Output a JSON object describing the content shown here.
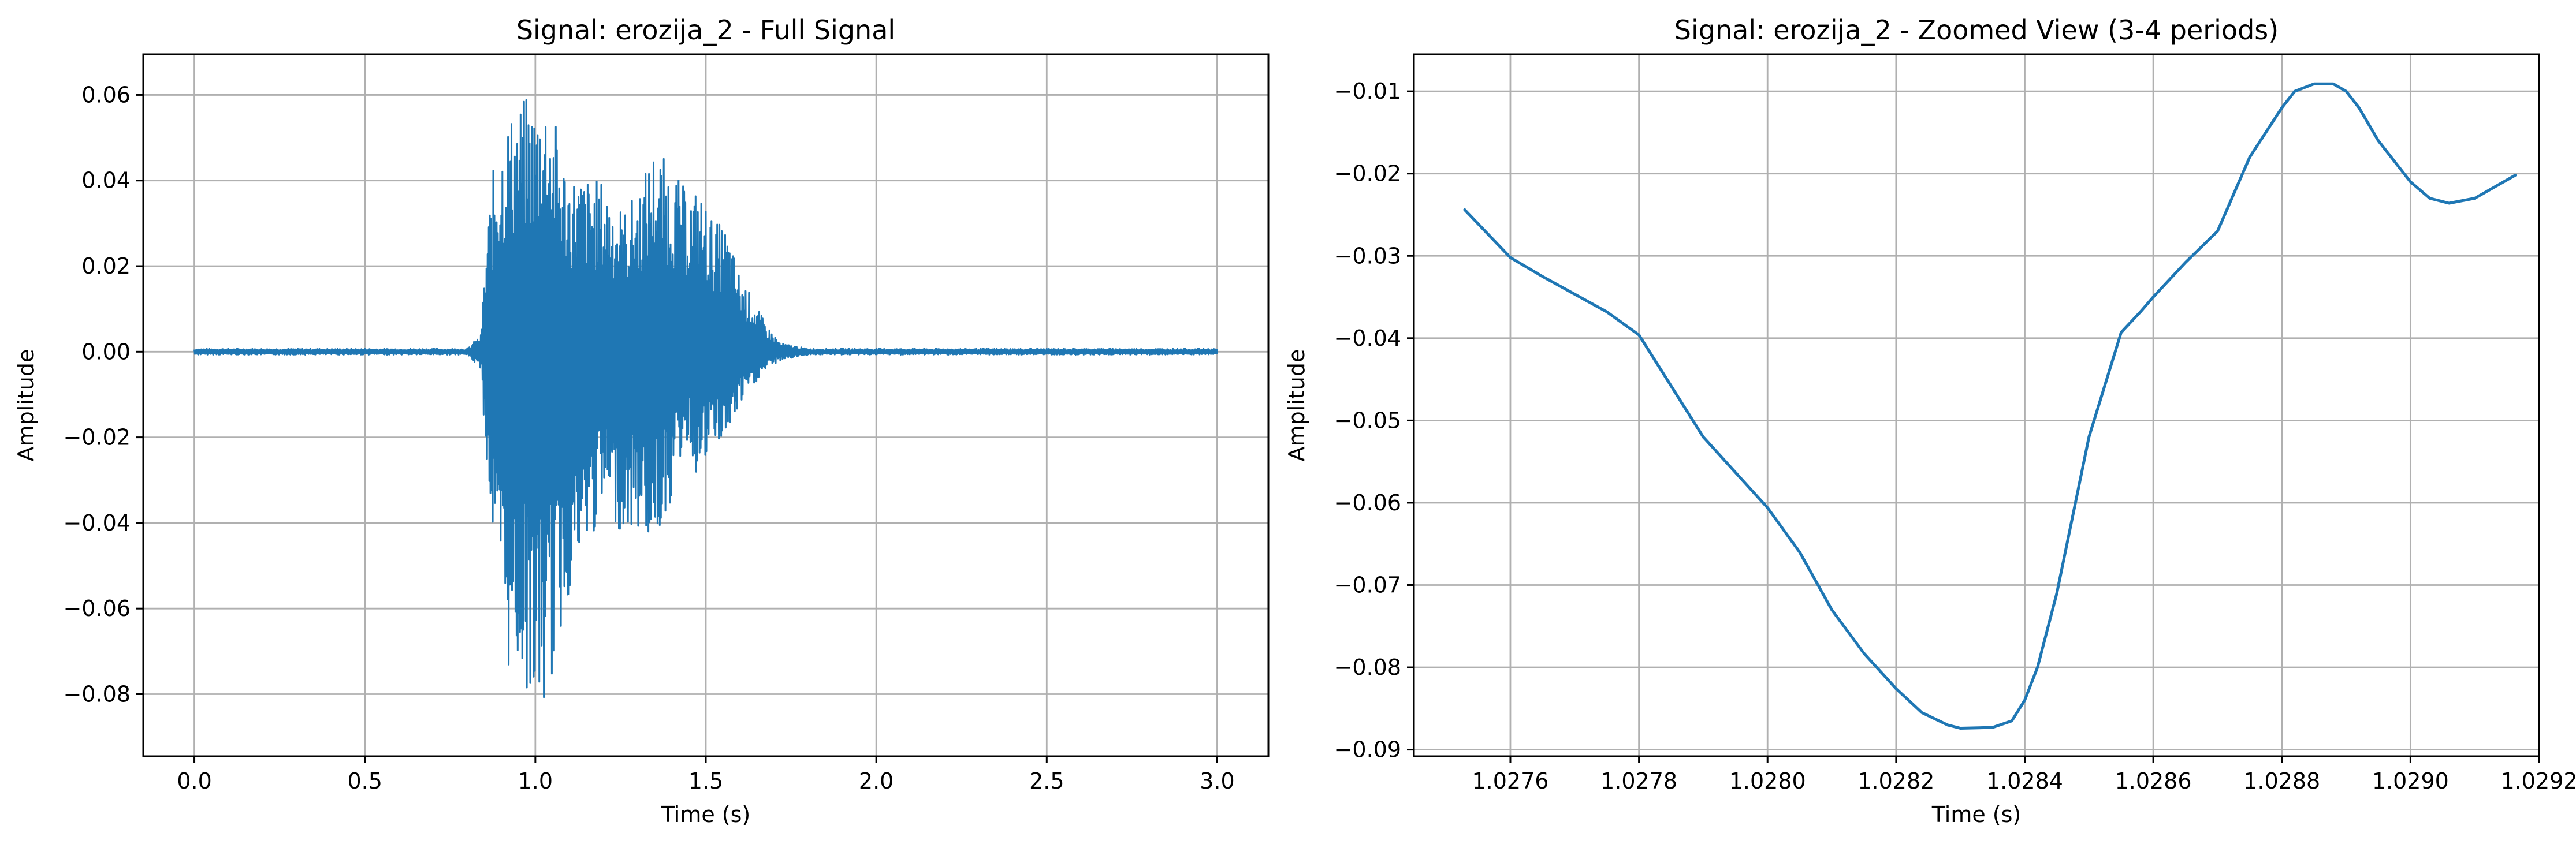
{
  "chart_data": [
    {
      "type": "line",
      "title": "Signal: erozija_2 - Full Signal",
      "xlabel": "Time (s)",
      "ylabel": "Amplitude",
      "xlim": [
        -0.15,
        3.15
      ],
      "ylim": [
        -0.0945,
        0.0695
      ],
      "xticks": [
        0.0,
        0.5,
        1.0,
        1.5,
        2.0,
        2.5,
        3.0
      ],
      "xtick_labels": [
        "0.0",
        "0.5",
        "1.0",
        "1.5",
        "2.0",
        "2.5",
        "3.0"
      ],
      "yticks": [
        0.06,
        0.04,
        0.02,
        0.0,
        -0.02,
        -0.04,
        -0.06,
        -0.08
      ],
      "ytick_labels": [
        "0.06",
        "0.04",
        "0.02",
        "0.00",
        "−0.02",
        "−0.04",
        "−0.06",
        "−0.08"
      ],
      "grid": true,
      "series": [
        {
          "color": "#1f77b4",
          "envelope": {
            "x": [
              0.0,
              0.8,
              0.84,
              0.86,
              0.88,
              0.92,
              0.95,
              0.98,
              1.0,
              1.02,
              1.05,
              1.08,
              1.1,
              1.14,
              1.2,
              1.26,
              1.3,
              1.35,
              1.4,
              1.44,
              1.48,
              1.52,
              1.56,
              1.6,
              1.64,
              1.68,
              1.72,
              1.8,
              3.0
            ],
            "upper": [
              0.0007,
              0.0007,
              0.004,
              0.03,
              0.045,
              0.055,
              0.058,
              0.06,
              0.058,
              0.062,
              0.057,
              0.046,
              0.042,
              0.041,
              0.04,
              0.033,
              0.038,
              0.048,
              0.043,
              0.038,
              0.038,
              0.031,
              0.029,
              0.018,
              0.012,
              0.006,
              0.002,
              0.0007,
              0.0007
            ],
            "lower": [
              -0.0007,
              -0.0007,
              -0.004,
              -0.03,
              -0.05,
              -0.075,
              -0.075,
              -0.08,
              -0.084,
              -0.087,
              -0.077,
              -0.065,
              -0.057,
              -0.05,
              -0.037,
              -0.043,
              -0.042,
              -0.045,
              -0.035,
              -0.02,
              -0.031,
              -0.022,
              -0.021,
              -0.013,
              -0.008,
              -0.004,
              -0.002,
              -0.0007,
              -0.0007
            ]
          }
        }
      ]
    },
    {
      "type": "line",
      "title": "Signal: erozija_2 - Zoomed View (3-4 periods)",
      "xlabel": "Time (s)",
      "ylabel": "Amplitude",
      "xlim": [
        1.02745,
        1.0292
      ],
      "ylim": [
        -0.0908,
        -0.0055
      ],
      "xticks": [
        1.0276,
        1.0278,
        1.028,
        1.0282,
        1.0284,
        1.0286,
        1.0288,
        1.029,
        1.0292
      ],
      "xtick_labels": [
        "1.0276",
        "1.0278",
        "1.0280",
        "1.0282",
        "1.0284",
        "1.0286",
        "1.0288",
        "1.0290",
        "1.0292"
      ],
      "yticks": [
        -0.01,
        -0.02,
        -0.03,
        -0.04,
        -0.05,
        -0.06,
        -0.07,
        -0.08,
        -0.09
      ],
      "ytick_labels": [
        "−0.01",
        "−0.02",
        "−0.03",
        "−0.04",
        "−0.05",
        "−0.06",
        "−0.07",
        "−0.08",
        "−0.09"
      ],
      "grid": true,
      "series": [
        {
          "color": "#1f77b4",
          "x": [
            1.027529,
            1.0276,
            1.02765,
            1.02775,
            1.0278,
            1.0279,
            1.028,
            1.02805,
            1.0281,
            1.02815,
            1.0282,
            1.02824,
            1.02828,
            1.0283,
            1.02835,
            1.02838,
            1.0284,
            1.02842,
            1.02845,
            1.0285,
            1.02855,
            1.02858,
            1.0286,
            1.02865,
            1.0287,
            1.02875,
            1.0288,
            1.02882,
            1.02885,
            1.02888,
            1.0289,
            1.02892,
            1.02895,
            1.029,
            1.02903,
            1.02906,
            1.0291,
            1.029163
          ],
          "y": [
            -0.0244,
            -0.0302,
            -0.0325,
            -0.0368,
            -0.0396,
            -0.052,
            -0.0606,
            -0.066,
            -0.073,
            -0.0783,
            -0.0826,
            -0.0855,
            -0.087,
            -0.0874,
            -0.0873,
            -0.0865,
            -0.084,
            -0.08,
            -0.071,
            -0.052,
            -0.0393,
            -0.0368,
            -0.035,
            -0.0308,
            -0.027,
            -0.018,
            -0.012,
            -0.01,
            -0.0091,
            -0.0091,
            -0.01,
            -0.012,
            -0.016,
            -0.021,
            -0.023,
            -0.0236,
            -0.023,
            -0.0202
          ]
        }
      ]
    }
  ]
}
